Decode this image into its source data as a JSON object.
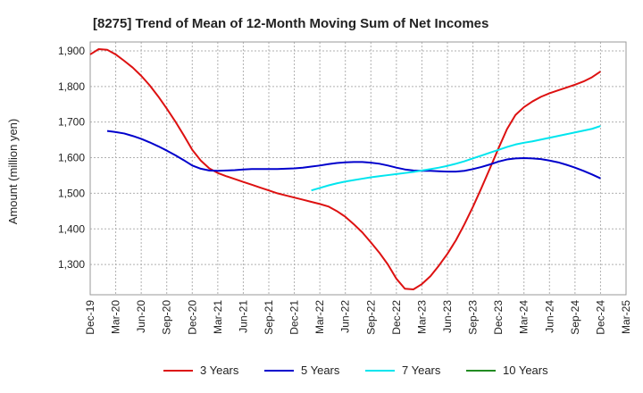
{
  "chart_data": {
    "type": "line",
    "title": "[8275]  Trend of Mean of 12-Month Moving Sum of Net Incomes",
    "xlabel": "",
    "ylabel": "Amount (million yen)",
    "ylim": [
      1215,
      1925
    ],
    "yticks": [
      1300,
      1400,
      1500,
      1600,
      1700,
      1800,
      1900
    ],
    "ytick_labels": [
      "1,300",
      "1,400",
      "1,500",
      "1,600",
      "1,700",
      "1,800",
      "1,900"
    ],
    "xticks": [
      "2019-12",
      "2020-03",
      "2020-06",
      "2020-09",
      "2020-12",
      "2021-03",
      "2021-06",
      "2021-09",
      "2021-12",
      "2022-03",
      "2022-06",
      "2022-09",
      "2022-12",
      "2023-03",
      "2023-06",
      "2023-09",
      "2023-12",
      "2024-03",
      "2024-06",
      "2024-09",
      "2024-12",
      "2025-03"
    ],
    "xtick_labels": [
      "Dec-19",
      "Mar-20",
      "Jun-20",
      "Sep-20",
      "Dec-20",
      "Mar-21",
      "Jun-21",
      "Sep-21",
      "Dec-21",
      "Mar-22",
      "Jun-22",
      "Sep-22",
      "Dec-22",
      "Mar-23",
      "Jun-23",
      "Sep-23",
      "Dec-23",
      "Mar-24",
      "Jun-24",
      "Sep-24",
      "Dec-24",
      "Mar-25"
    ],
    "grid": true,
    "legend_position": "bottom",
    "series": [
      {
        "name": "3 Years",
        "color": "#dd1111",
        "x": [
          "2019-12",
          "2020-01",
          "2020-02",
          "2020-03",
          "2020-04",
          "2020-05",
          "2020-06",
          "2020-07",
          "2020-08",
          "2020-09",
          "2020-10",
          "2020-11",
          "2020-12",
          "2021-01",
          "2021-02",
          "2021-03",
          "2021-04",
          "2021-05",
          "2021-06",
          "2021-07",
          "2021-08",
          "2021-09",
          "2021-10",
          "2021-11",
          "2021-12",
          "2022-01",
          "2022-02",
          "2022-03",
          "2022-04",
          "2022-05",
          "2022-06",
          "2022-07",
          "2022-08",
          "2022-09",
          "2022-10",
          "2022-11",
          "2022-12",
          "2023-01",
          "2023-02",
          "2023-03",
          "2023-04",
          "2023-05",
          "2023-06",
          "2023-07",
          "2023-08",
          "2023-09",
          "2023-10",
          "2023-11",
          "2023-12",
          "2024-01",
          "2024-02",
          "2024-03",
          "2024-04",
          "2024-05",
          "2024-06",
          "2024-07",
          "2024-08",
          "2024-09",
          "2024-10",
          "2024-11",
          "2024-12"
        ],
        "values": [
          1890,
          1905,
          1903,
          1890,
          1872,
          1853,
          1830,
          1803,
          1772,
          1738,
          1702,
          1663,
          1622,
          1592,
          1570,
          1557,
          1548,
          1540,
          1532,
          1524,
          1516,
          1508,
          1500,
          1494,
          1488,
          1482,
          1476,
          1470,
          1463,
          1450,
          1434,
          1413,
          1390,
          1362,
          1333,
          1300,
          1260,
          1232,
          1230,
          1245,
          1267,
          1297,
          1330,
          1368,
          1413,
          1462,
          1515,
          1570,
          1626,
          1680,
          1720,
          1742,
          1758,
          1771,
          1781,
          1789,
          1797,
          1805,
          1814,
          1826,
          1842
        ]
      },
      {
        "name": "5 Years",
        "color": "#0000cc",
        "x": [
          "2020-02",
          "2020-03",
          "2020-04",
          "2020-05",
          "2020-06",
          "2020-07",
          "2020-08",
          "2020-09",
          "2020-10",
          "2020-11",
          "2020-12",
          "2021-01",
          "2021-02",
          "2021-03",
          "2021-04",
          "2021-05",
          "2021-06",
          "2021-07",
          "2021-08",
          "2021-09",
          "2021-10",
          "2021-11",
          "2021-12",
          "2022-01",
          "2022-02",
          "2022-03",
          "2022-04",
          "2022-05",
          "2022-06",
          "2022-07",
          "2022-08",
          "2022-09",
          "2022-10",
          "2022-11",
          "2022-12",
          "2023-01",
          "2023-02",
          "2023-03",
          "2023-04",
          "2023-05",
          "2023-06",
          "2023-07",
          "2023-08",
          "2023-09",
          "2023-10",
          "2023-11",
          "2023-12",
          "2024-01",
          "2024-02",
          "2024-03",
          "2024-04",
          "2024-05",
          "2024-06",
          "2024-07",
          "2024-08",
          "2024-09",
          "2024-10",
          "2024-11",
          "2024-12"
        ],
        "values": [
          1675,
          1672,
          1668,
          1661,
          1653,
          1643,
          1632,
          1620,
          1607,
          1593,
          1578,
          1569,
          1564,
          1563,
          1564,
          1565,
          1567,
          1568,
          1568,
          1568,
          1568,
          1569,
          1570,
          1572,
          1575,
          1578,
          1582,
          1585,
          1587,
          1588,
          1588,
          1586,
          1583,
          1578,
          1572,
          1567,
          1564,
          1563,
          1563,
          1562,
          1561,
          1561,
          1563,
          1568,
          1574,
          1581,
          1589,
          1595,
          1598,
          1599,
          1598,
          1596,
          1592,
          1587,
          1580,
          1572,
          1563,
          1553,
          1542
        ]
      },
      {
        "name": "7 Years",
        "color": "#00e5ee",
        "x": [
          "2022-02",
          "2022-03",
          "2022-04",
          "2022-05",
          "2022-06",
          "2022-07",
          "2022-08",
          "2022-09",
          "2022-10",
          "2022-11",
          "2022-12",
          "2023-01",
          "2023-02",
          "2023-03",
          "2023-04",
          "2023-05",
          "2023-06",
          "2023-07",
          "2023-08",
          "2023-09",
          "2023-10",
          "2023-11",
          "2023-12",
          "2024-01",
          "2024-02",
          "2024-03",
          "2024-04",
          "2024-05",
          "2024-06",
          "2024-07",
          "2024-08",
          "2024-09",
          "2024-10",
          "2024-11",
          "2024-12"
        ],
        "values": [
          1508,
          1515,
          1522,
          1528,
          1533,
          1537,
          1541,
          1545,
          1548,
          1551,
          1554,
          1557,
          1560,
          1564,
          1568,
          1572,
          1577,
          1583,
          1590,
          1598,
          1606,
          1614,
          1622,
          1630,
          1637,
          1642,
          1646,
          1651,
          1656,
          1661,
          1666,
          1671,
          1676,
          1681,
          1689
        ]
      },
      {
        "name": "10 Years",
        "color": "#228b22",
        "x": [],
        "values": []
      }
    ]
  }
}
